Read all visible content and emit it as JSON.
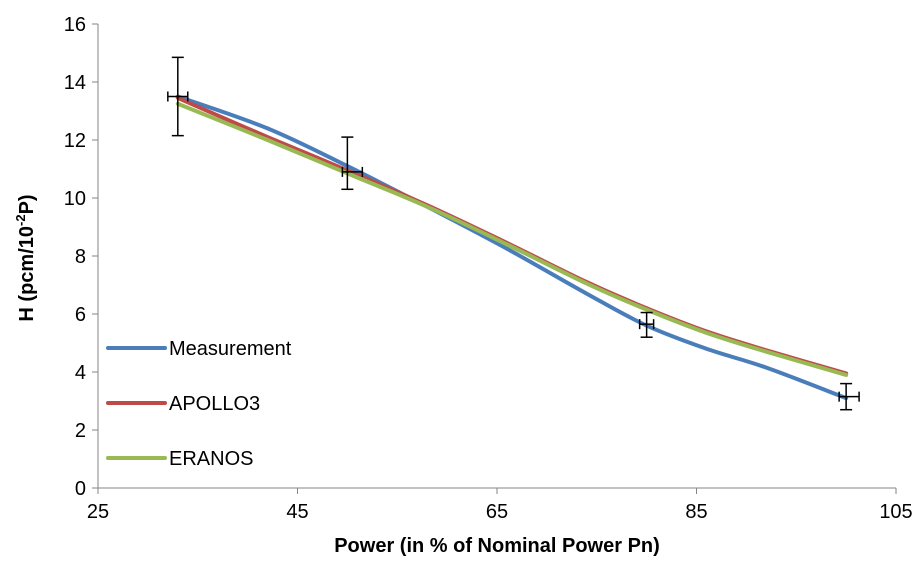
{
  "chart_data": {
    "type": "line",
    "xlabel": "Power (in % of Nominal Power Pn)",
    "ylabel_parts": {
      "base": "H (pcm/10",
      "sup": "-2",
      "tail": "P)"
    },
    "xlim": [
      25,
      105
    ],
    "ylim": [
      0,
      16
    ],
    "x_ticks": [
      25,
      45,
      65,
      85,
      105
    ],
    "y_ticks": [
      0,
      2,
      4,
      6,
      8,
      10,
      12,
      14,
      16
    ],
    "grid": false,
    "legend_position": "bottom-left",
    "series": [
      {
        "name": "Measurement",
        "color": "#4A7EBB",
        "x": [
          33,
          42,
          50,
          58,
          66,
          74,
          80,
          86,
          92,
          100
        ],
        "y": [
          13.5,
          12.4,
          11.1,
          9.7,
          8.25,
          6.7,
          5.6,
          4.8,
          4.15,
          3.1
        ],
        "error_points": [
          {
            "x": 33,
            "y": 13.5,
            "y_low": 12.15,
            "y_high": 14.85,
            "x_low": 32,
            "x_high": 34
          },
          {
            "x": 50,
            "y": 10.9,
            "y_low": 10.3,
            "y_high": 12.1,
            "x_low": 49.5,
            "x_high": 51.5
          },
          {
            "x": 80,
            "y": 5.65,
            "y_low": 5.2,
            "y_high": 6.05,
            "x_low": 79.3,
            "x_high": 80.7
          },
          {
            "x": 100,
            "y": 3.15,
            "y_low": 2.7,
            "y_high": 3.6,
            "x_low": 99.3,
            "x_high": 101.3
          }
        ]
      },
      {
        "name": "APOLLO3",
        "color": "#BE4B48",
        "x": [
          33,
          42,
          50,
          58,
          66,
          74,
          80,
          86,
          92,
          100
        ],
        "y": [
          13.45,
          12.1,
          10.95,
          9.75,
          8.45,
          7.1,
          6.2,
          5.4,
          4.75,
          3.95
        ]
      },
      {
        "name": "ERANOS",
        "color": "#98B954",
        "x": [
          33,
          42,
          50,
          58,
          66,
          74,
          80,
          86,
          92,
          100
        ],
        "y": [
          13.25,
          12.0,
          10.85,
          9.7,
          8.4,
          7.05,
          6.15,
          5.35,
          4.7,
          3.9
        ]
      }
    ]
  }
}
